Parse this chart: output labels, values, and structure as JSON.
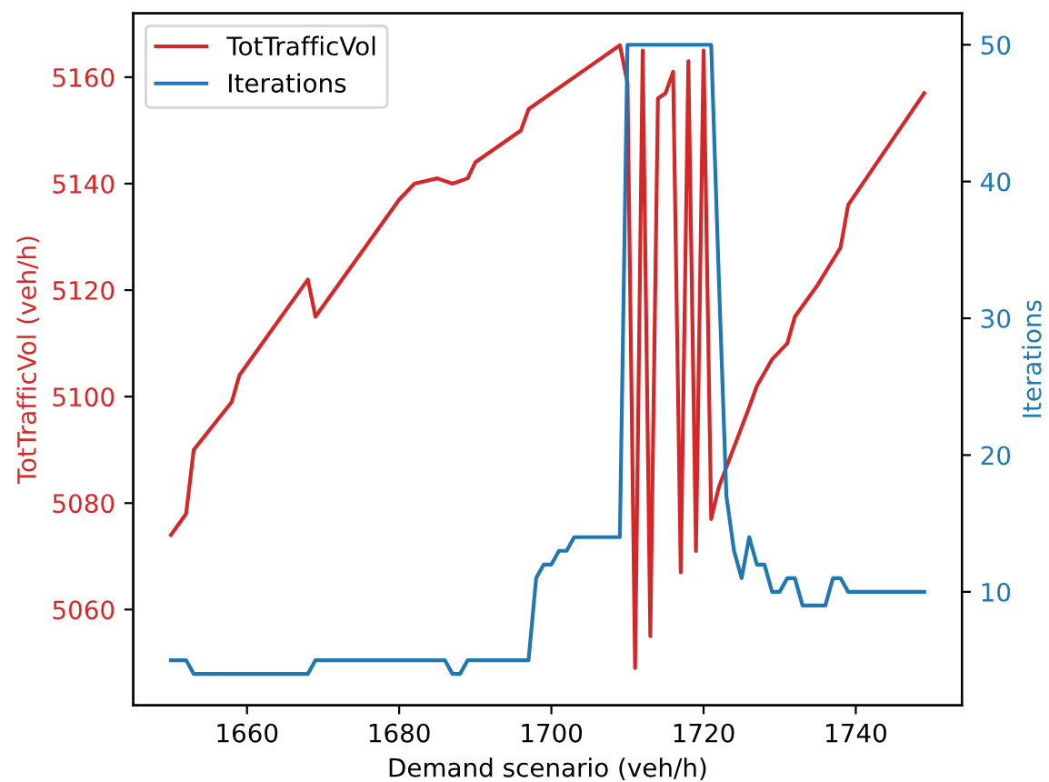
{
  "chart_data": {
    "type": "line",
    "xlabel": "Demand scenario (veh/h)",
    "ylabel": "TotTrafficVol (veh/h)",
    "y2label": "Iterations",
    "xlim": [
      1645.05,
      1753.95
    ],
    "xticks": [
      1660,
      1680,
      1700,
      1720,
      1740
    ],
    "ylim": [
      5042,
      5172
    ],
    "yticks": [
      5060,
      5080,
      5100,
      5120,
      5140,
      5160
    ],
    "y2lim": [
      1.7,
      52.3
    ],
    "y2ticks": [
      10,
      20,
      30,
      40,
      50
    ],
    "legend": "top left",
    "grid": false,
    "series": [
      {
        "name": "TotTrafficVol",
        "color": "#d62728",
        "x": [
          1650,
          1652,
          1653,
          1658,
          1659,
          1668,
          1669,
          1680,
          1682,
          1685,
          1687,
          1689,
          1690,
          1696,
          1697,
          1705,
          1709,
          1710,
          1711,
          1712,
          1713,
          1714,
          1715,
          1716,
          1717,
          1718,
          1719,
          1720,
          1721,
          1722,
          1726,
          1727,
          1729,
          1731,
          1732,
          1735,
          1738,
          1739,
          1749
        ],
        "values": [
          5074,
          5078,
          5090,
          5099,
          5104,
          5122,
          5115,
          5137,
          5140,
          5141,
          5140,
          5141,
          5144,
          5150,
          5154,
          5162,
          5166,
          5159,
          5049,
          5165,
          5055,
          5156,
          5157,
          5161,
          5067,
          5163,
          5071,
          5165,
          5077,
          5083,
          5098,
          5102,
          5107,
          5110,
          5115,
          5121,
          5128,
          5136,
          5157
        ]
      },
      {
        "name": "Iterations",
        "color": "#1f77b4",
        "axis": "y2",
        "x": [
          1650,
          1652,
          1653,
          1668,
          1669,
          1686,
          1687,
          1688,
          1689,
          1697,
          1698,
          1699,
          1700,
          1701,
          1702,
          1703,
          1709,
          1710,
          1721,
          1722,
          1723,
          1724,
          1725,
          1726,
          1727,
          1728,
          1729,
          1730,
          1731,
          1732,
          1733,
          1736,
          1737,
          1738,
          1739,
          1749
        ],
        "values": [
          5,
          5,
          4,
          4,
          5,
          5,
          4,
          4,
          5,
          5,
          11,
          12,
          12,
          13,
          13,
          14,
          14,
          50,
          50,
          33,
          17,
          13,
          11,
          14,
          12,
          12,
          10,
          10,
          11,
          11,
          9,
          9,
          11,
          11,
          10,
          10
        ]
      }
    ]
  }
}
